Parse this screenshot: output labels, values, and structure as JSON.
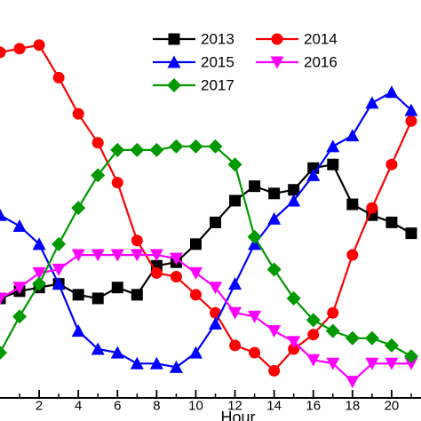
{
  "chart_data": {
    "type": "line",
    "title": "",
    "xlabel": "Hour",
    "ylabel": "",
    "xlim": [
      0,
      21.5
    ],
    "ylim": [
      0,
      100
    ],
    "x_ticks": [
      2,
      4,
      6,
      8,
      10,
      12,
      14,
      16,
      18,
      20
    ],
    "grid": false,
    "legend_position": "top-right",
    "series": [
      {
        "name": "2013",
        "color": "#000000",
        "marker": "square",
        "x": [
          0,
          1,
          2,
          3,
          4,
          5,
          6,
          7,
          8,
          9,
          10,
          11,
          12,
          13,
          14,
          15,
          16,
          17,
          18,
          19,
          20,
          21
        ],
        "y": [
          20,
          22,
          23,
          24,
          21,
          20,
          23,
          21,
          29,
          30,
          35,
          41,
          47,
          51,
          49,
          50,
          56,
          57,
          46,
          43,
          41,
          38
        ]
      },
      {
        "name": "2014",
        "color": "#ff0000",
        "marker": "circle",
        "x": [
          0,
          1,
          2,
          3,
          4,
          5,
          6,
          7,
          8,
          9,
          10,
          11,
          12,
          13,
          14,
          15,
          16,
          17,
          18,
          19,
          20,
          21
        ],
        "y": [
          88,
          89,
          90,
          81,
          71,
          63,
          52,
          36,
          27,
          26,
          21,
          16,
          7,
          5,
          0,
          6,
          10,
          16,
          32,
          45,
          57,
          69
        ]
      },
      {
        "name": "2015",
        "color": "#0000ff",
        "marker": "triangle-up",
        "x": [
          0,
          1,
          2,
          3,
          4,
          5,
          6,
          7,
          8,
          9,
          10,
          11,
          12,
          13,
          14,
          15,
          16,
          17,
          18,
          19,
          20,
          21
        ],
        "y": [
          43,
          40,
          35,
          24,
          11,
          6,
          5,
          2,
          2,
          1,
          5,
          13,
          24,
          35,
          42,
          47,
          54,
          62,
          65,
          74,
          77,
          72
        ]
      },
      {
        "name": "2016",
        "color": "#ff00ff",
        "marker": "triangle-down",
        "x": [
          0,
          1,
          2,
          3,
          4,
          5,
          6,
          7,
          8,
          9,
          10,
          11,
          12,
          13,
          14,
          15,
          16,
          17,
          18,
          19,
          20,
          21
        ],
        "y": [
          20,
          23,
          27,
          28,
          32,
          32,
          32,
          32,
          32,
          31,
          27,
          23,
          16,
          15,
          11,
          8,
          3,
          2,
          -3,
          2,
          2,
          2
        ]
      },
      {
        "name": "2017",
        "color": "#009900",
        "marker": "diamond",
        "x": [
          0,
          1,
          2,
          3,
          4,
          5,
          6,
          7,
          8,
          9,
          10,
          11,
          12,
          13,
          14,
          15,
          16,
          17,
          18,
          19,
          20,
          21
        ],
        "y": [
          5,
          15,
          24,
          35,
          45,
          54,
          61,
          61,
          61,
          62,
          62,
          62,
          57,
          37,
          28,
          20,
          14,
          11,
          9,
          9,
          7,
          4
        ]
      }
    ]
  }
}
